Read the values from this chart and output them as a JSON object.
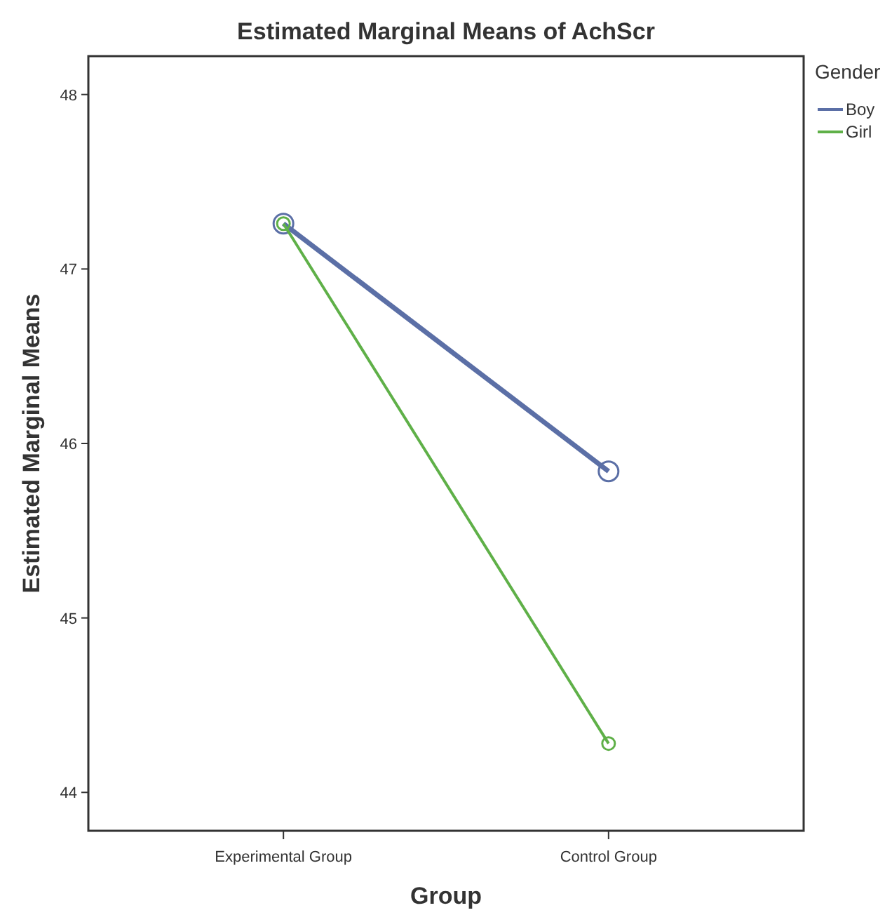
{
  "chart_data": {
    "type": "line",
    "title": "Estimated Marginal Means of AchScr",
    "xlabel": "Group",
    "ylabel": "Estimated Marginal Means",
    "legend_title": "Gender",
    "categories": [
      "Experimental Group",
      "Control Group"
    ],
    "series": [
      {
        "name": "Boy",
        "color": "#5b6fa6",
        "values": [
          47.26,
          45.84
        ]
      },
      {
        "name": "Girl",
        "color": "#5fb048",
        "values": [
          47.26,
          44.28
        ]
      }
    ],
    "ylim": [
      43.78,
      48.22
    ],
    "yticks": [
      44,
      45,
      46,
      47,
      48
    ],
    "grid": false,
    "legend": "top right",
    "marker": "circle",
    "line_style": "solid"
  }
}
